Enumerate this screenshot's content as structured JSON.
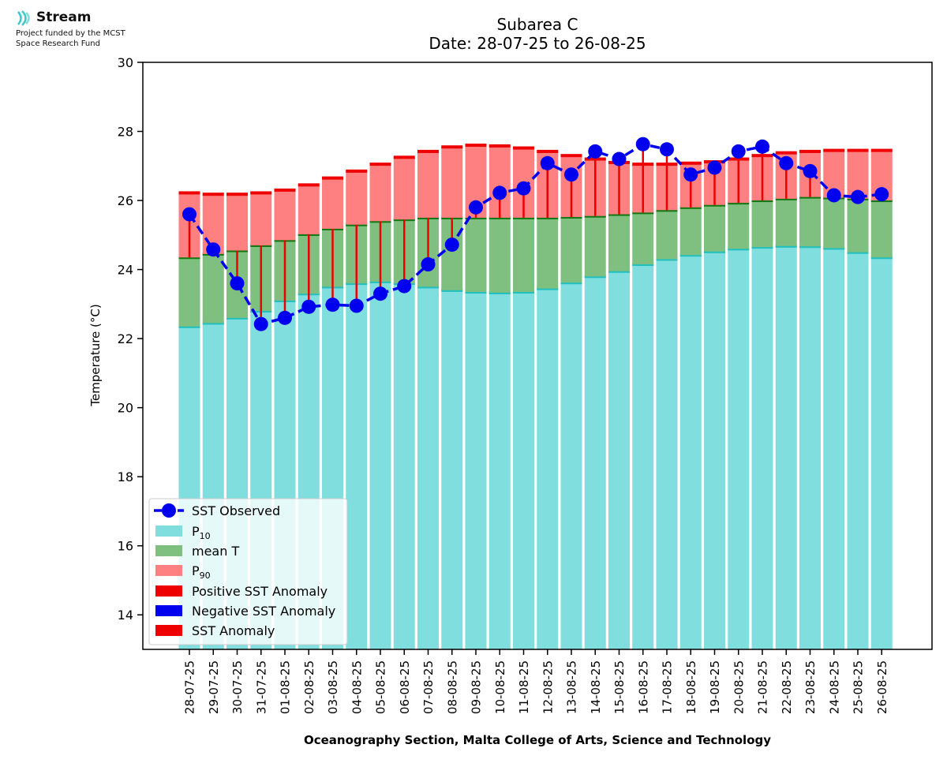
{
  "branding": {
    "name": "Stream",
    "line1": "Project funded by the MCST",
    "line2": "Space Research Fund"
  },
  "chart_data": {
    "type": "bar",
    "title": "Subarea C",
    "subtitle": "Date: 28-07-25 to 26-08-25",
    "ylabel": "Temperature (°C)",
    "xlabel": "Oceanography Section, Malta College of Arts, Science and Technology",
    "ylim": [
      13,
      30
    ],
    "yticks": [
      14,
      16,
      18,
      20,
      22,
      24,
      26,
      28,
      30
    ],
    "grid": false,
    "legend_position": "lower-left",
    "categories": [
      "28-07-25",
      "29-07-25",
      "30-07-25",
      "31-07-25",
      "01-08-25",
      "02-08-25",
      "03-08-25",
      "04-08-25",
      "05-08-25",
      "06-08-25",
      "07-08-25",
      "08-08-25",
      "09-08-25",
      "10-08-25",
      "11-08-25",
      "12-08-25",
      "13-08-25",
      "14-08-25",
      "15-08-25",
      "16-08-25",
      "17-08-25",
      "18-08-25",
      "19-08-25",
      "20-08-25",
      "21-08-25",
      "22-08-25",
      "23-08-25",
      "24-08-25",
      "25-08-25",
      "26-08-25"
    ],
    "series": [
      {
        "name": "P10",
        "display_name": "P",
        "display_sub": "10",
        "color": "#80dedf",
        "edge": "#20c0c0",
        "values": [
          22.35,
          22.45,
          22.6,
          22.8,
          23.1,
          23.3,
          23.5,
          23.6,
          23.65,
          23.6,
          23.5,
          23.4,
          23.35,
          23.33,
          23.35,
          23.45,
          23.62,
          23.8,
          23.95,
          24.15,
          24.3,
          24.42,
          24.52,
          24.6,
          24.65,
          24.68,
          24.67,
          24.62,
          24.5,
          24.35
        ]
      },
      {
        "name": "mean T",
        "display_name": "mean T",
        "color": "#7fbf7f",
        "edge": "#117711",
        "values": [
          24.35,
          24.45,
          24.55,
          24.7,
          24.85,
          25.02,
          25.18,
          25.3,
          25.4,
          25.45,
          25.5,
          25.5,
          25.5,
          25.5,
          25.5,
          25.5,
          25.52,
          25.55,
          25.6,
          25.65,
          25.72,
          25.8,
          25.87,
          25.93,
          26.0,
          26.05,
          26.1,
          26.08,
          26.05,
          26.0
        ]
      },
      {
        "name": "P90",
        "display_name": "P",
        "display_sub": "90",
        "color": "#ff8080",
        "edge": "#ee0000",
        "values": [
          26.22,
          26.18,
          26.18,
          26.22,
          26.3,
          26.45,
          26.65,
          26.85,
          27.05,
          27.25,
          27.42,
          27.55,
          27.6,
          27.58,
          27.52,
          27.42,
          27.3,
          27.2,
          27.1,
          27.05,
          27.05,
          27.08,
          27.12,
          27.2,
          27.3,
          27.38,
          27.42,
          27.45,
          27.45,
          27.45
        ]
      },
      {
        "name": "SST Observed",
        "color": "#0000ee",
        "values": [
          25.6,
          24.58,
          23.6,
          22.42,
          22.6,
          22.92,
          22.98,
          22.95,
          23.3,
          23.52,
          24.15,
          24.72,
          25.8,
          26.22,
          26.35,
          27.08,
          26.75,
          27.42,
          27.2,
          27.63,
          27.48,
          26.75,
          26.95,
          27.42,
          27.56,
          27.08,
          26.85,
          26.15,
          26.1,
          26.18
        ]
      }
    ],
    "legend": [
      "SST Observed",
      "P10",
      "mean T",
      "P90",
      "Positive SST Anomaly",
      "Negative SST Anomaly",
      "SST Anomaly"
    ],
    "colors": {
      "anomaly_positive": "#ee0000",
      "anomaly_negative": "#0000ee",
      "anomaly": "#ee0000",
      "observed": "#0000ee"
    }
  }
}
